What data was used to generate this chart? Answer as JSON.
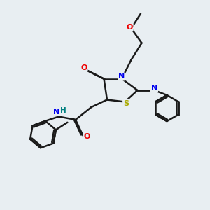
{
  "bg_color": "#e8eef2",
  "atom_colors": {
    "C": "#1a1a1a",
    "N": "#0000ee",
    "O": "#ee0000",
    "S": "#aaaa00",
    "H": "#008080"
  },
  "bond_color": "#1a1a1a",
  "bond_width": 1.8,
  "figsize": [
    3.0,
    3.0
  ],
  "dpi": 100
}
